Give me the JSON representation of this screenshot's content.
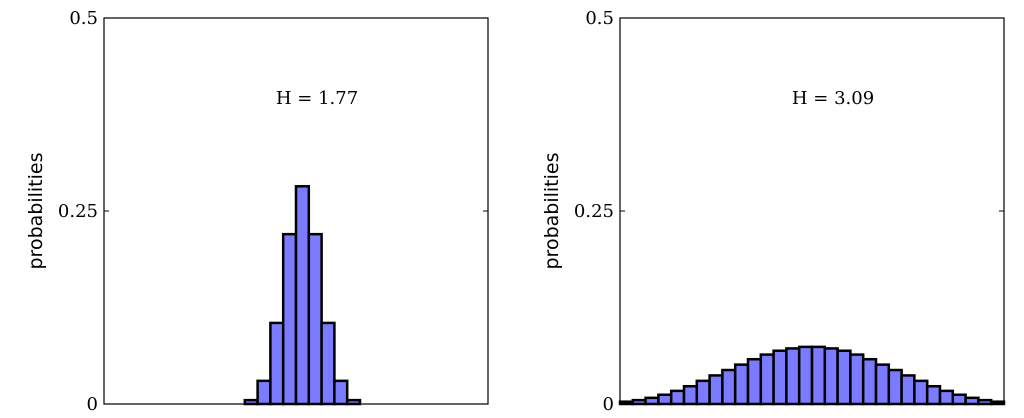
{
  "chart_data": [
    {
      "type": "bar",
      "ylabel": "probabilities",
      "annotation": "H = 1.77",
      "ylim": [
        0,
        0.5
      ],
      "yticks": [
        {
          "value": 0,
          "label": "0"
        },
        {
          "value": 0.25,
          "label": "0.25"
        },
        {
          "value": 0.5,
          "label": "0.5"
        }
      ],
      "xlim": [
        0,
        30
      ],
      "x": [
        0,
        1,
        2,
        3,
        4,
        5,
        6,
        7,
        8,
        9,
        10,
        11,
        12,
        13,
        14,
        15,
        16,
        17,
        18,
        19,
        20,
        21,
        22,
        23,
        24,
        25,
        26,
        27,
        28,
        29
      ],
      "values": [
        0,
        0,
        0,
        0,
        0,
        0,
        0,
        0,
        0,
        0,
        0,
        0.005,
        0.03,
        0.105,
        0.22,
        0.282,
        0.22,
        0.105,
        0.03,
        0.005,
        0,
        0,
        0,
        0,
        0,
        0,
        0,
        0,
        0,
        0
      ],
      "bar_color": "#7b7bff",
      "grid": false
    },
    {
      "type": "bar",
      "ylabel": "probabilities",
      "annotation": "H = 3.09",
      "ylim": [
        0,
        0.5
      ],
      "yticks": [
        {
          "value": 0,
          "label": "0"
        },
        {
          "value": 0.25,
          "label": "0.25"
        },
        {
          "value": 0.5,
          "label": "0.5"
        }
      ],
      "xlim": [
        0,
        30
      ],
      "x": [
        0,
        1,
        2,
        3,
        4,
        5,
        6,
        7,
        8,
        9,
        10,
        11,
        12,
        13,
        14,
        15,
        16,
        17,
        18,
        19,
        20,
        21,
        22,
        23,
        24,
        25,
        26,
        27,
        28,
        29
      ],
      "values": [
        0.003,
        0.005,
        0.008,
        0.012,
        0.017,
        0.023,
        0.03,
        0.037,
        0.044,
        0.051,
        0.058,
        0.064,
        0.069,
        0.072,
        0.074,
        0.074,
        0.072,
        0.069,
        0.064,
        0.058,
        0.051,
        0.044,
        0.037,
        0.03,
        0.023,
        0.017,
        0.012,
        0.008,
        0.005,
        0.003
      ],
      "bar_color": "#7b7bff",
      "grid": false
    }
  ]
}
